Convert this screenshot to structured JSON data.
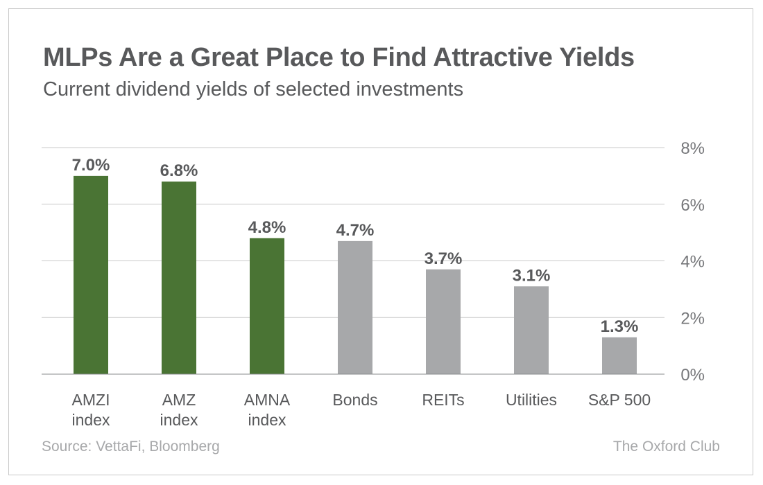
{
  "chart_data": {
    "type": "bar",
    "title": "MLPs Are a Great Place to Find Attractive Yields",
    "subtitle": "Current dividend yields of selected investments",
    "categories": [
      [
        "AMZI",
        "index"
      ],
      [
        "AMZ",
        "index"
      ],
      [
        "AMNA",
        "index"
      ],
      [
        "Bonds"
      ],
      [
        "REITs"
      ],
      [
        "Utilities"
      ],
      [
        "S&P 500"
      ]
    ],
    "values": [
      7.0,
      6.8,
      4.8,
      4.7,
      3.7,
      3.1,
      1.3
    ],
    "value_labels": [
      "7.0%",
      "6.8%",
      "4.8%",
      "4.7%",
      "3.7%",
      "3.1%",
      "1.3%"
    ],
    "highlight": [
      true,
      true,
      true,
      false,
      false,
      false,
      false
    ],
    "ylim": [
      0,
      8
    ],
    "yticks": [
      0,
      2,
      4,
      6,
      8
    ],
    "ytick_labels": [
      "0%",
      "2%",
      "4%",
      "6%",
      "8%"
    ],
    "y_axis_side": "right",
    "grid": true,
    "xlabel": "",
    "ylabel": "",
    "colors": {
      "highlight": "#4a7434",
      "default": "#a7a8aa",
      "grid": "#c8c8c8",
      "label": "#58595b",
      "tick": "#77787b"
    }
  },
  "footer": {
    "source": "Source: VettaFi, Bloomberg",
    "brand": "The Oxford Club"
  }
}
